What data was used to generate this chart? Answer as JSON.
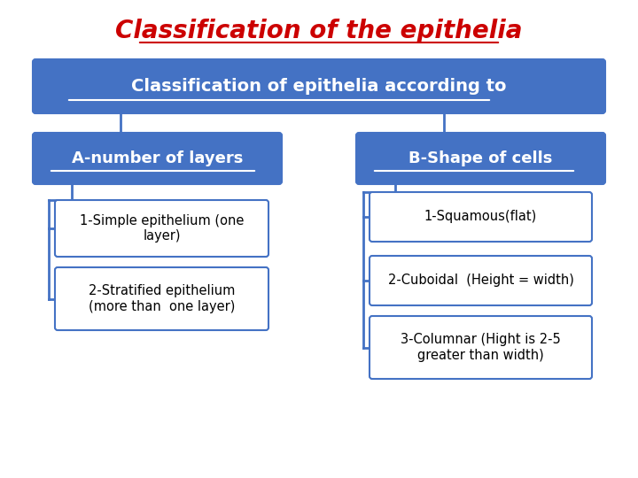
{
  "title": "Classification of the epithelia",
  "title_color": "#cc0000",
  "title_fontsize": 20,
  "bg_color": "#ffffff",
  "box_blue": "#4472c4",
  "text_white": "#ffffff",
  "text_dark": "#000000",
  "root_text": "Classification of epithelia according to",
  "left_header": "A-number of layers",
  "right_header": "B-Shape of cells",
  "left_children": [
    "1-Simple epithelium (one\nlayer)",
    "2-Stratified epithelium\n(more than  one layer)"
  ],
  "right_children": [
    "1-Squamous(flat)",
    "2-Cuboidal  (Height = width)",
    "3-Columnar (Hight is 2-5\ngreater than width)"
  ],
  "line_color": "#4472c4"
}
